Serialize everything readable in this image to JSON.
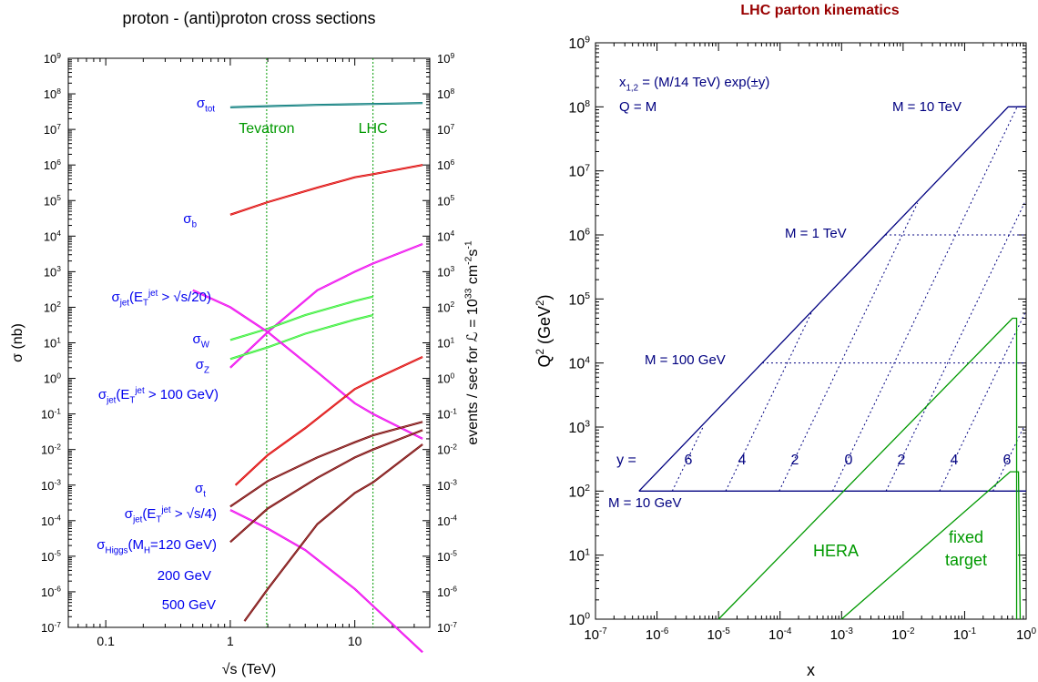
{
  "chart_data": [
    {
      "type": "line",
      "title": "proton - (anti)proton cross sections",
      "xlabel": "√s (TeV)",
      "ylabel": "σ (nb)",
      "ylabel_right": "events / sec for ℒ = 10³³ cm⁻²s⁻¹",
      "xscale": "log",
      "yscale": "log",
      "xlim": [
        0.05,
        40
      ],
      "ylim": [
        1e-07,
        1000000000.0
      ],
      "xticks": [
        {
          "value": 0.1,
          "label": "0.1"
        },
        {
          "value": 1,
          "label": "1"
        },
        {
          "value": 10,
          "label": "10"
        }
      ],
      "yticks": [
        {
          "exp": -7,
          "label": "10",
          "sup": "-7"
        },
        {
          "exp": -6,
          "label": "10",
          "sup": "-6"
        },
        {
          "exp": -5,
          "label": "10",
          "sup": "-5"
        },
        {
          "exp": -4,
          "label": "10",
          "sup": "-4"
        },
        {
          "exp": -3,
          "label": "10",
          "sup": "-3"
        },
        {
          "exp": -2,
          "label": "10",
          "sup": "-2"
        },
        {
          "exp": -1,
          "label": "10",
          "sup": "-1"
        },
        {
          "exp": 0,
          "label": "10",
          "sup": "0"
        },
        {
          "exp": 1,
          "label": "10",
          "sup": "1"
        },
        {
          "exp": 2,
          "label": "10",
          "sup": "2"
        },
        {
          "exp": 3,
          "label": "10",
          "sup": "3"
        },
        {
          "exp": 4,
          "label": "10",
          "sup": "4"
        },
        {
          "exp": 5,
          "label": "10",
          "sup": "5"
        },
        {
          "exp": 6,
          "label": "10",
          "sup": "6"
        },
        {
          "exp": 7,
          "label": "10",
          "sup": "7"
        },
        {
          "exp": 8,
          "label": "10",
          "sup": "8"
        },
        {
          "exp": 9,
          "label": "10",
          "sup": "9"
        }
      ],
      "vlines": [
        {
          "x": 1.96,
          "label": "Tevatron",
          "color": "#009900"
        },
        {
          "x": 14,
          "label": "LHC",
          "color": "#009900"
        }
      ],
      "series": [
        {
          "name": "σtot",
          "color": "#007777",
          "x": [
            1,
            2,
            5,
            10,
            14,
            35
          ],
          "y": [
            42000000.0,
            45000000.0,
            49000000.0,
            51000000.0,
            52000000.0,
            55000000.0
          ]
        },
        {
          "name": "σb",
          "color": "#dd0000",
          "x": [
            1,
            2,
            5,
            10,
            14,
            35
          ],
          "y": [
            40000.0,
            90000.0,
            230000.0,
            450000.0,
            550000.0,
            1000000.0
          ]
        },
        {
          "name": "σjet(ET jet > √s/20)",
          "color": "#ee00ee",
          "x": [
            1,
            2,
            5,
            10,
            14,
            35
          ],
          "y": [
            2,
            20,
            300,
            1000,
            1700,
            6000
          ]
        },
        {
          "name": "σW",
          "color": "#33ee33",
          "x": [
            1,
            2,
            4,
            10,
            14
          ],
          "y": [
            12,
            25,
            60,
            150,
            200
          ]
        },
        {
          "name": "σZ",
          "color": "#33ee33",
          "x": [
            1,
            2,
            4,
            10,
            14
          ],
          "y": [
            3.5,
            7.5,
            18,
            45,
            60
          ]
        },
        {
          "name": "σjet(ET jet > 100 GeV)",
          "color": "#ee00ee",
          "x": [
            0.5,
            1,
            2,
            5,
            10,
            14,
            35
          ],
          "y": [
            300,
            100,
            20,
            1.5,
            0.2,
            0.1,
            0.02
          ]
        },
        {
          "name": "σt",
          "color": "#dd0000",
          "x": [
            1.1,
            2,
            4,
            10,
            14,
            35
          ],
          "y": [
            0.001,
            0.007,
            0.04,
            0.5,
            0.9,
            4
          ]
        },
        {
          "name": "σjet(ET jet > √s/4)",
          "color": "#ee00ee",
          "x": [
            1,
            2,
            4,
            10,
            14,
            35
          ],
          "y": [
            0.0002,
            6e-05,
            1.5e-05,
            1.2e-06,
            4e-07,
            2e-08
          ]
        },
        {
          "name": "σHiggs(MH=120 GeV)",
          "color": "#770000",
          "x": [
            1,
            2,
            5,
            10,
            14,
            35
          ],
          "y": [
            0.00025,
            0.0013,
            0.006,
            0.016,
            0.025,
            0.06
          ]
        },
        {
          "name": "200 GeV",
          "color": "#770000",
          "x": [
            1,
            2,
            5,
            10,
            14,
            35
          ],
          "y": [
            2.5e-05,
            0.00022,
            0.0016,
            0.006,
            0.01,
            0.035
          ]
        },
        {
          "name": "500 GeV",
          "color": "#770000",
          "x": [
            1.3,
            2,
            5,
            10,
            14,
            35
          ],
          "y": [
            1.5e-07,
            1.2e-06,
            8e-05,
            0.0006,
            0.0012,
            0.014
          ]
        }
      ],
      "labels": [
        {
          "main": "σ",
          "sub": "tot",
          "rest": ""
        },
        {
          "main": "σ",
          "sub": "b",
          "rest": ""
        },
        {
          "main": "σ",
          "sub": "jet",
          "rest": "(E",
          "sub2": "T",
          "sup2": "jet",
          "tail": " > √s/20)"
        },
        {
          "main": "σ",
          "sub": "W",
          "rest": ""
        },
        {
          "main": "σ",
          "sub": "Z",
          "rest": ""
        },
        {
          "main": "σ",
          "sub": "jet",
          "rest": "(E",
          "sub2": "T",
          "sup2": "jet",
          "tail": " > 100 GeV)"
        },
        {
          "main": "σ",
          "sub": "t",
          "rest": ""
        },
        {
          "main": "σ",
          "sub": "jet",
          "rest": "(E",
          "sub2": "T",
          "sup2": "jet",
          "tail": " > √s/4)"
        },
        {
          "main": "σ",
          "sub": "Higgs",
          "rest": "(M",
          "sub2": "H",
          "tail": "=120 GeV)"
        },
        {
          "main": "200 GeV"
        },
        {
          "main": "500 GeV"
        }
      ]
    },
    {
      "type": "line",
      "title": "LHC parton kinematics",
      "xlabel": "x",
      "ylabel": "Q² (GeV²)",
      "xscale": "log",
      "yscale": "log",
      "xlim": [
        1e-07,
        1
      ],
      "ylim": [
        1,
        1000000000.0
      ],
      "xticks_exp": [
        -7,
        -6,
        -5,
        -4,
        -3,
        -2,
        -1,
        0
      ],
      "yticks_exp": [
        0,
        1,
        2,
        3,
        4,
        5,
        6,
        7,
        8,
        9
      ],
      "formula": "x",
      "formula_sub": "1,2",
      "formula_rest": " = (M/14 TeV) exp(±y)",
      "q_eq": "Q = M",
      "mass_lines": [
        {
          "label": "M = 10 GeV",
          "Q2": 100
        },
        {
          "label": "M = 100 GeV",
          "Q2": 10000
        },
        {
          "label": "M = 1 TeV",
          "Q2": 1000000
        },
        {
          "label": "M = 10 TeV",
          "Q2": 100000000
        }
      ],
      "y_values": [
        "y =",
        "6",
        "4",
        "2",
        "0",
        "2",
        "4",
        "6"
      ],
      "regions": [
        {
          "label": "HERA",
          "color": "#009900"
        },
        {
          "label": "fixed",
          "label2": "target",
          "color": "#009900"
        }
      ],
      "color": "#000080"
    }
  ]
}
